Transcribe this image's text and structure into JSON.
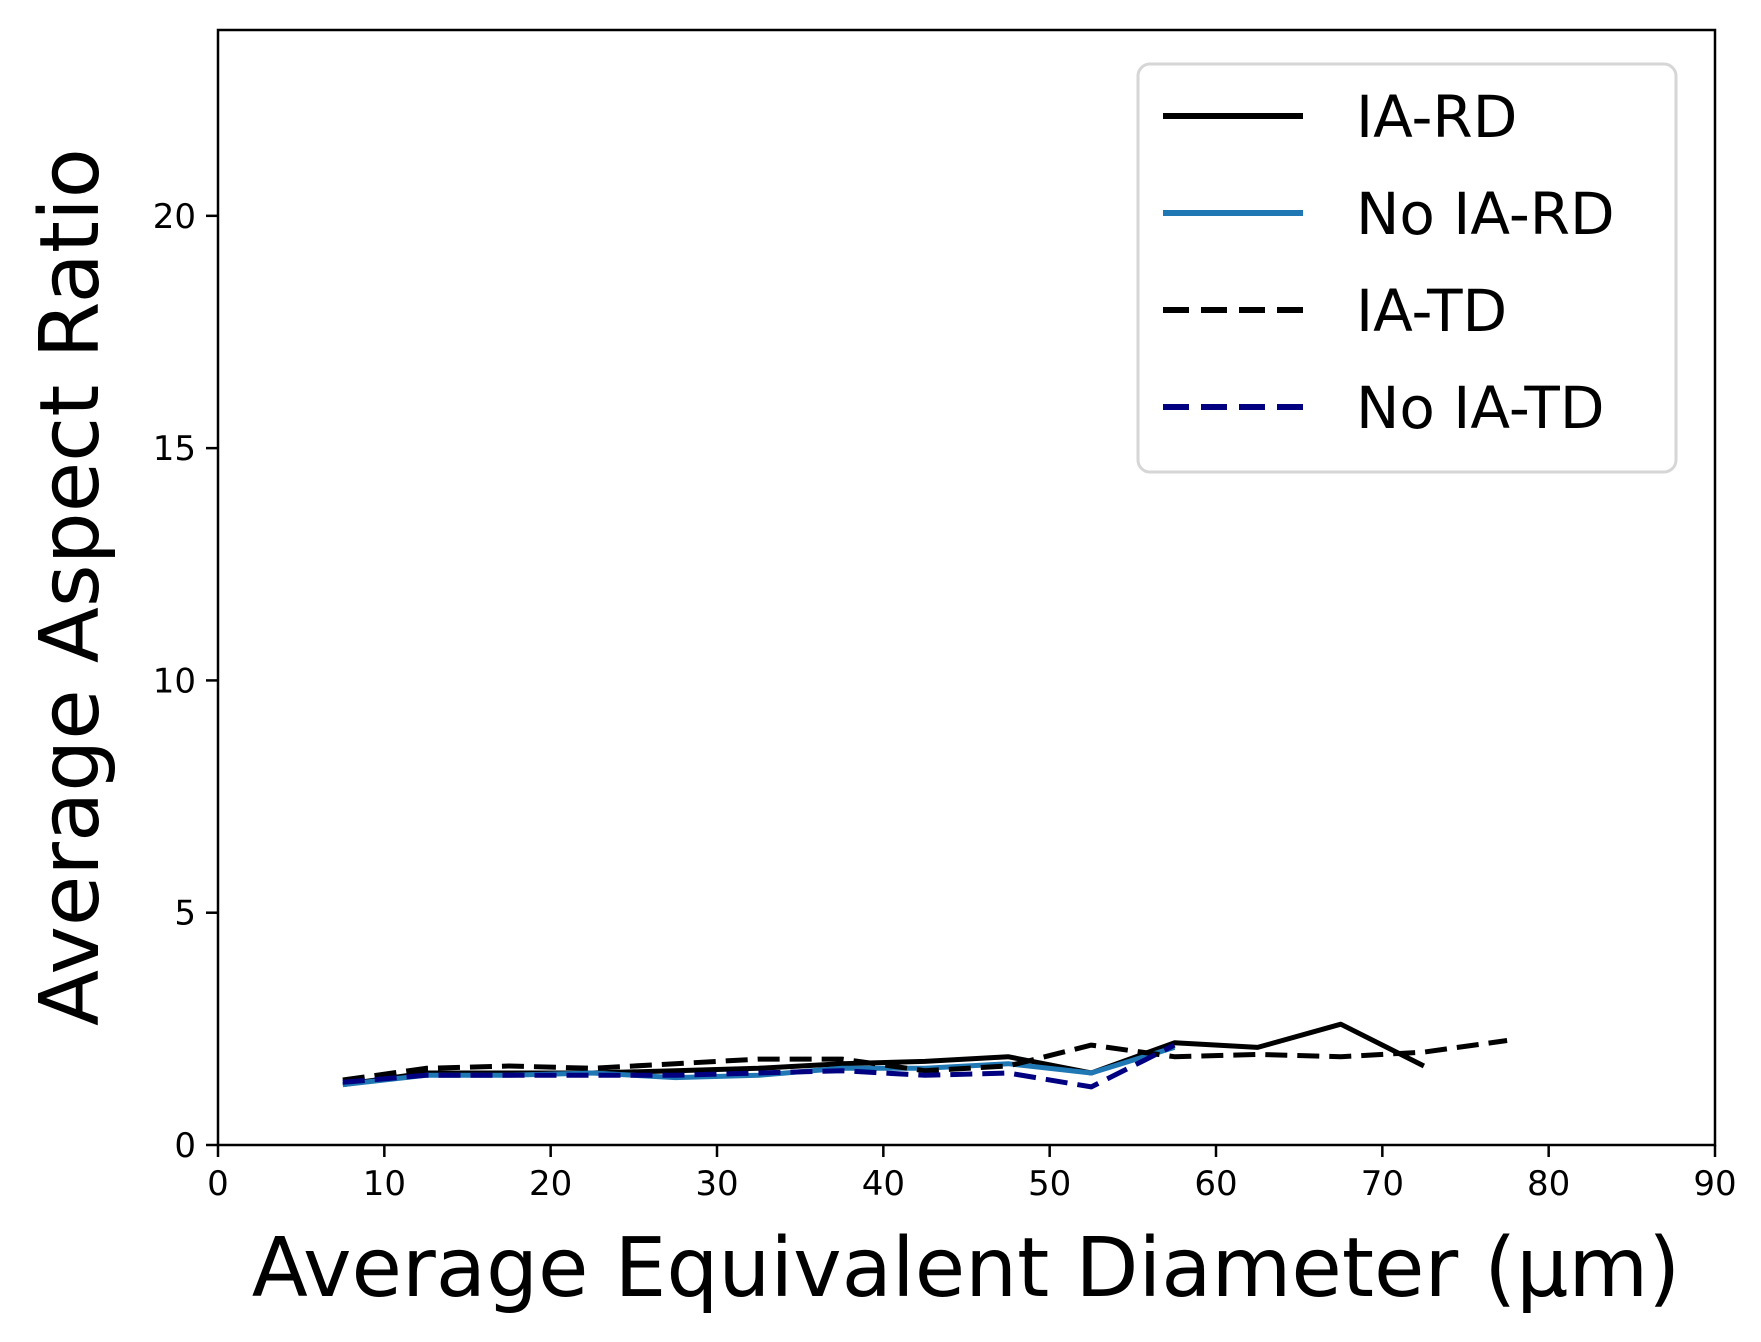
{
  "chart_data": {
    "type": "line",
    "title": "",
    "xlabel": "Average Equivalent Diameter (µm)",
    "ylabel": "Average Aspect Ratio",
    "xlim": [
      0,
      90
    ],
    "ylim": [
      0,
      24
    ],
    "xticks": [
      "0",
      "10",
      "20",
      "30",
      "40",
      "50",
      "60",
      "70",
      "80",
      "90"
    ],
    "yticks": [
      "0",
      "5",
      "10",
      "15",
      "20"
    ],
    "grid": false,
    "legend_position": "top-right",
    "series": [
      {
        "name": "IA-RD",
        "color": "#000000",
        "dash": "solid",
        "x": [
          7.5,
          12.5,
          17.5,
          22.5,
          27.5,
          32.5,
          37.5,
          42.5,
          47.5,
          52.5,
          57.5,
          62.5,
          67.5,
          72.5
        ],
        "y": [
          1.3,
          1.55,
          1.55,
          1.55,
          1.6,
          1.65,
          1.75,
          1.8,
          1.9,
          1.55,
          2.2,
          2.1,
          2.6,
          1.7
        ]
      },
      {
        "name": "No IA-RD",
        "color": "#1f77b4",
        "dash": "solid",
        "x": [
          7.5,
          12.5,
          17.5,
          22.5,
          27.5,
          32.5,
          37.5,
          42.5,
          47.5,
          52.5,
          57.5
        ],
        "y": [
          1.3,
          1.5,
          1.5,
          1.55,
          1.45,
          1.5,
          1.65,
          1.65,
          1.75,
          1.55,
          2.1
        ]
      },
      {
        "name": "IA-TD",
        "color": "#000000",
        "dash": "dashed",
        "x": [
          7.5,
          12.5,
          17.5,
          22.5,
          27.5,
          32.5,
          37.5,
          42.5,
          47.5,
          52.5,
          57.5,
          62.5,
          67.5,
          72.5,
          77.5
        ],
        "y": [
          1.4,
          1.65,
          1.7,
          1.65,
          1.75,
          1.85,
          1.85,
          1.6,
          1.7,
          2.15,
          1.9,
          1.95,
          1.9,
          2.0,
          2.25
        ]
      },
      {
        "name": "No IA-TD",
        "color": "#000080",
        "dash": "dashed",
        "x": [
          7.5,
          12.5,
          17.5,
          22.5,
          27.5,
          32.5,
          37.5,
          42.5,
          47.5,
          52.5,
          57.5
        ],
        "y": [
          1.35,
          1.5,
          1.5,
          1.5,
          1.5,
          1.55,
          1.6,
          1.5,
          1.55,
          1.25,
          2.15
        ]
      }
    ]
  }
}
